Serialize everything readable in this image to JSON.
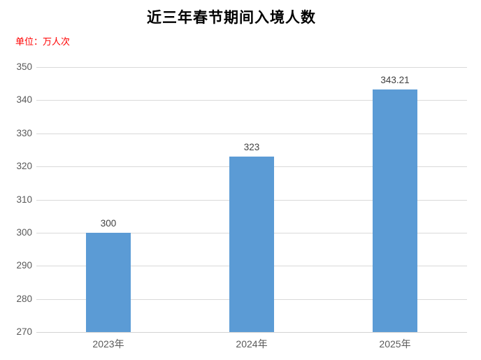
{
  "chart_data": {
    "type": "bar",
    "title": "近三年春节期间入境人数",
    "unit_label": "单位：万人次",
    "categories": [
      "2023年",
      "2024年",
      "2025年"
    ],
    "values": [
      300,
      323,
      343.21
    ],
    "data_labels": [
      "300",
      "323",
      "343.21"
    ],
    "xlabel": "",
    "ylabel": "",
    "ylim": [
      270,
      350
    ],
    "ytick_interval": 10,
    "yticks": [
      270,
      280,
      290,
      300,
      310,
      320,
      330,
      340,
      350
    ],
    "grid": true,
    "legend": "none",
    "colors": {
      "bar": "#5B9BD5",
      "gridline": "#D9D9D9",
      "axis_line": "#D2D2D2",
      "title_text": "#000000",
      "unit_text": "#FF0000",
      "tick_text": "#595959",
      "data_label_text": "#404040",
      "background": "#FFFFFF"
    }
  }
}
